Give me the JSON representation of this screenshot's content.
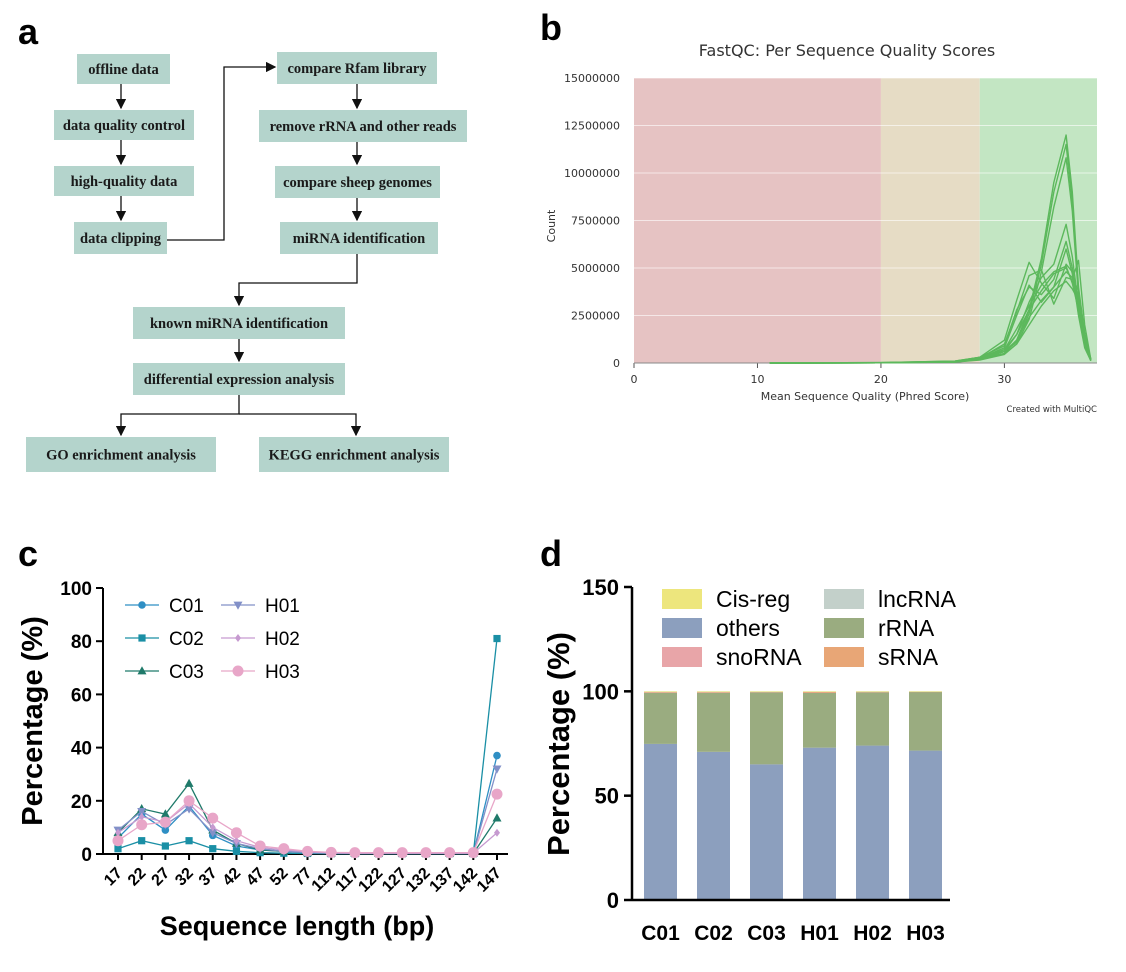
{
  "panels": {
    "a": "a",
    "b": "b",
    "c": "c",
    "d": "d"
  },
  "flowchart": {
    "nodes": [
      {
        "id": "offline",
        "label": "offline data"
      },
      {
        "id": "qc",
        "label": "data quality control"
      },
      {
        "id": "hq",
        "label": "high-quality data"
      },
      {
        "id": "clip",
        "label": "data clipping"
      },
      {
        "id": "rfam",
        "label": "compare Rfam library"
      },
      {
        "id": "rrna",
        "label": "remove rRNA and other reads"
      },
      {
        "id": "sheep",
        "label": "compare sheep genomes"
      },
      {
        "id": "mirna",
        "label": "miRNA identification"
      },
      {
        "id": "known",
        "label": "known miRNA identification"
      },
      {
        "id": "de",
        "label": "differential expression analysis"
      },
      {
        "id": "go",
        "label": "GO enrichment analysis"
      },
      {
        "id": "kegg",
        "label": "KEGG enrichment analysis"
      }
    ]
  },
  "chart_data": [
    {
      "panel": "b",
      "type": "line",
      "title": "FastQC: Per Sequence Quality Scores",
      "xlabel": "Mean Sequence Quality (Phred Score)",
      "ylabel": "Count",
      "xlim": [
        0,
        37.5
      ],
      "ylim": [
        0,
        15000000
      ],
      "x_ticks": [
        0,
        10,
        20,
        30
      ],
      "y_ticks": [
        0,
        2500000,
        5000000,
        7500000,
        10000000,
        12500000,
        15000000
      ],
      "background_bands": [
        {
          "from": 0,
          "to": 20,
          "color": "#e6c3c3"
        },
        {
          "from": 20,
          "to": 28,
          "color": "#e6dcc5"
        },
        {
          "from": 28,
          "to": 37.5,
          "color": "#c3e6c3"
        }
      ],
      "line_color": "#5cb85c",
      "credit": "Created with MultiQC",
      "x": [
        11,
        20,
        26,
        28,
        30,
        31,
        32,
        33,
        34,
        35,
        35.5,
        36,
        36.5,
        37
      ],
      "series": [
        {
          "values": [
            0,
            20000,
            100000,
            300000,
            600000,
            1200000,
            2800000,
            5500000,
            9500000,
            12000000,
            9000000,
            4000000,
            1500000,
            200000
          ]
        },
        {
          "values": [
            0,
            20000,
            100000,
            300000,
            600000,
            1100000,
            2600000,
            5200000,
            9000000,
            11500000,
            8500000,
            3800000,
            1400000,
            200000
          ]
        },
        {
          "values": [
            0,
            15000,
            80000,
            250000,
            500000,
            1000000,
            2300000,
            4800000,
            8200000,
            10800000,
            8000000,
            3500000,
            1300000,
            180000
          ]
        },
        {
          "values": [
            0,
            15000,
            90000,
            280000,
            700000,
            1500000,
            3200000,
            4500000,
            5200000,
            7300000,
            5600000,
            3000000,
            1100000,
            150000
          ]
        },
        {
          "values": [
            0,
            12000,
            80000,
            300000,
            900000,
            2800000,
            4000000,
            3600000,
            4400000,
            6400000,
            5000000,
            2600000,
            900000,
            120000
          ]
        },
        {
          "values": [
            0,
            12000,
            70000,
            250000,
            800000,
            2500000,
            4100000,
            3200000,
            4000000,
            6000000,
            4700000,
            2500000,
            800000,
            120000
          ]
        },
        {
          "values": [
            0,
            10000,
            70000,
            300000,
            1200000,
            3300000,
            5300000,
            4200000,
            3400000,
            5200000,
            4800000,
            3200000,
            1500000,
            150000
          ]
        },
        {
          "values": [
            0,
            10000,
            60000,
            250000,
            1000000,
            2700000,
            4600000,
            4900000,
            3100000,
            4500000,
            4400000,
            5400000,
            2000000,
            200000
          ]
        },
        {
          "values": [
            0,
            10000,
            60000,
            200000,
            700000,
            1800000,
            3000000,
            4100000,
            4800000,
            5100000,
            4200000,
            2800000,
            1200000,
            150000
          ]
        },
        {
          "values": [
            0,
            8000,
            50000,
            200000,
            600000,
            1500000,
            2800000,
            3800000,
            4700000,
            5000000,
            4300000,
            3500000,
            1400000,
            120000
          ]
        },
        {
          "values": [
            0,
            8000,
            50000,
            180000,
            500000,
            1200000,
            2400000,
            3300000,
            4000000,
            4800000,
            4500000,
            3800000,
            1600000,
            150000
          ]
        },
        {
          "values": [
            0,
            8000,
            45000,
            150000,
            450000,
            1000000,
            2000000,
            3000000,
            3800000,
            4300000,
            3900000,
            3300000,
            1300000,
            120000
          ]
        }
      ]
    },
    {
      "panel": "c",
      "type": "line",
      "xlabel": "Sequence length (bp)",
      "ylabel": "Percentage (%)",
      "ylim": [
        0,
        100
      ],
      "y_ticks": [
        0,
        20,
        40,
        60,
        80,
        100
      ],
      "categories": [
        "17",
        "22",
        "27",
        "32",
        "37",
        "42",
        "47",
        "52",
        "77",
        "112",
        "117",
        "122",
        "127",
        "132",
        "137",
        "142",
        "147"
      ],
      "legend_placement": "top-left",
      "series": [
        {
          "name": "C01",
          "marker": "circle",
          "color": "#2f8fc4",
          "values": [
            6,
            15,
            9,
            18,
            7,
            3,
            1.5,
            1,
            0.5,
            0.3,
            0.2,
            0.2,
            0.2,
            0.2,
            0.2,
            0.2,
            37
          ]
        },
        {
          "name": "C02",
          "marker": "square",
          "color": "#1a8fa5",
          "values": [
            2,
            5,
            3,
            5,
            2,
            1,
            0.5,
            0.3,
            0.2,
            0.1,
            0.1,
            0.1,
            0.1,
            0.1,
            0.1,
            0.1,
            81
          ]
        },
        {
          "name": "C03",
          "marker": "triangle",
          "color": "#1f7a6a",
          "values": [
            8,
            17,
            15,
            26.5,
            9,
            4,
            1.5,
            1,
            0.5,
            0.3,
            0.2,
            0.2,
            0.2,
            0.2,
            0.2,
            0.2,
            13.5
          ]
        },
        {
          "name": "H01",
          "marker": "triangle-down",
          "color": "#8290c8",
          "values": [
            9,
            16,
            11,
            17,
            8,
            4,
            2,
            1,
            0.5,
            0.3,
            0.2,
            0.2,
            0.2,
            0.2,
            0.2,
            0.2,
            32
          ]
        },
        {
          "name": "H02",
          "marker": "diamond",
          "color": "#c69ad0",
          "values": [
            8,
            14,
            12,
            19,
            10,
            5,
            2.5,
            1.5,
            0.8,
            0.4,
            0.3,
            0.3,
            0.3,
            0.3,
            0.3,
            0.3,
            8
          ]
        },
        {
          "name": "H03",
          "marker": "circle-large",
          "color": "#e8a6c8",
          "values": [
            5,
            11,
            12,
            20,
            13.5,
            8,
            3,
            2,
            1,
            0.6,
            0.5,
            0.5,
            0.5,
            0.5,
            0.5,
            0.5,
            22.5
          ]
        }
      ]
    },
    {
      "panel": "d",
      "type": "bar",
      "stacked": true,
      "ylabel": "Percentage (%)",
      "ylim": [
        0,
        150
      ],
      "y_ticks": [
        0,
        50,
        100,
        150
      ],
      "categories": [
        "C01",
        "C02",
        "C03",
        "H01",
        "H02",
        "H03"
      ],
      "legend_placement": "top",
      "series": [
        {
          "name": "others",
          "color": "#8c9fbe",
          "values": [
            74.8,
            71,
            65,
            73,
            74,
            71.6
          ]
        },
        {
          "name": "rRNA",
          "color": "#9aac80",
          "values": [
            24.5,
            28.3,
            34.5,
            26.2,
            25.5,
            28.2
          ]
        },
        {
          "name": "sRNA",
          "color": "#e8a676",
          "values": [
            0.5,
            0.5,
            0.3,
            0.6,
            0.4,
            0.1
          ]
        },
        {
          "name": "snoRNA",
          "color": "#e8a5a8",
          "values": [
            0.1,
            0.1,
            0.1,
            0.1,
            0.05,
            0.05
          ]
        },
        {
          "name": "lncRNA",
          "color": "#c3d0ca",
          "values": [
            0.05,
            0.05,
            0.05,
            0.05,
            0.03,
            0.03
          ]
        },
        {
          "name": "Cis-reg",
          "color": "#ede67d",
          "values": [
            0.05,
            0.05,
            0.05,
            0.05,
            0.02,
            0.02
          ]
        }
      ],
      "legend_order": [
        "Cis-reg",
        "lncRNA",
        "others",
        "rRNA",
        "snoRNA",
        "sRNA"
      ]
    }
  ]
}
